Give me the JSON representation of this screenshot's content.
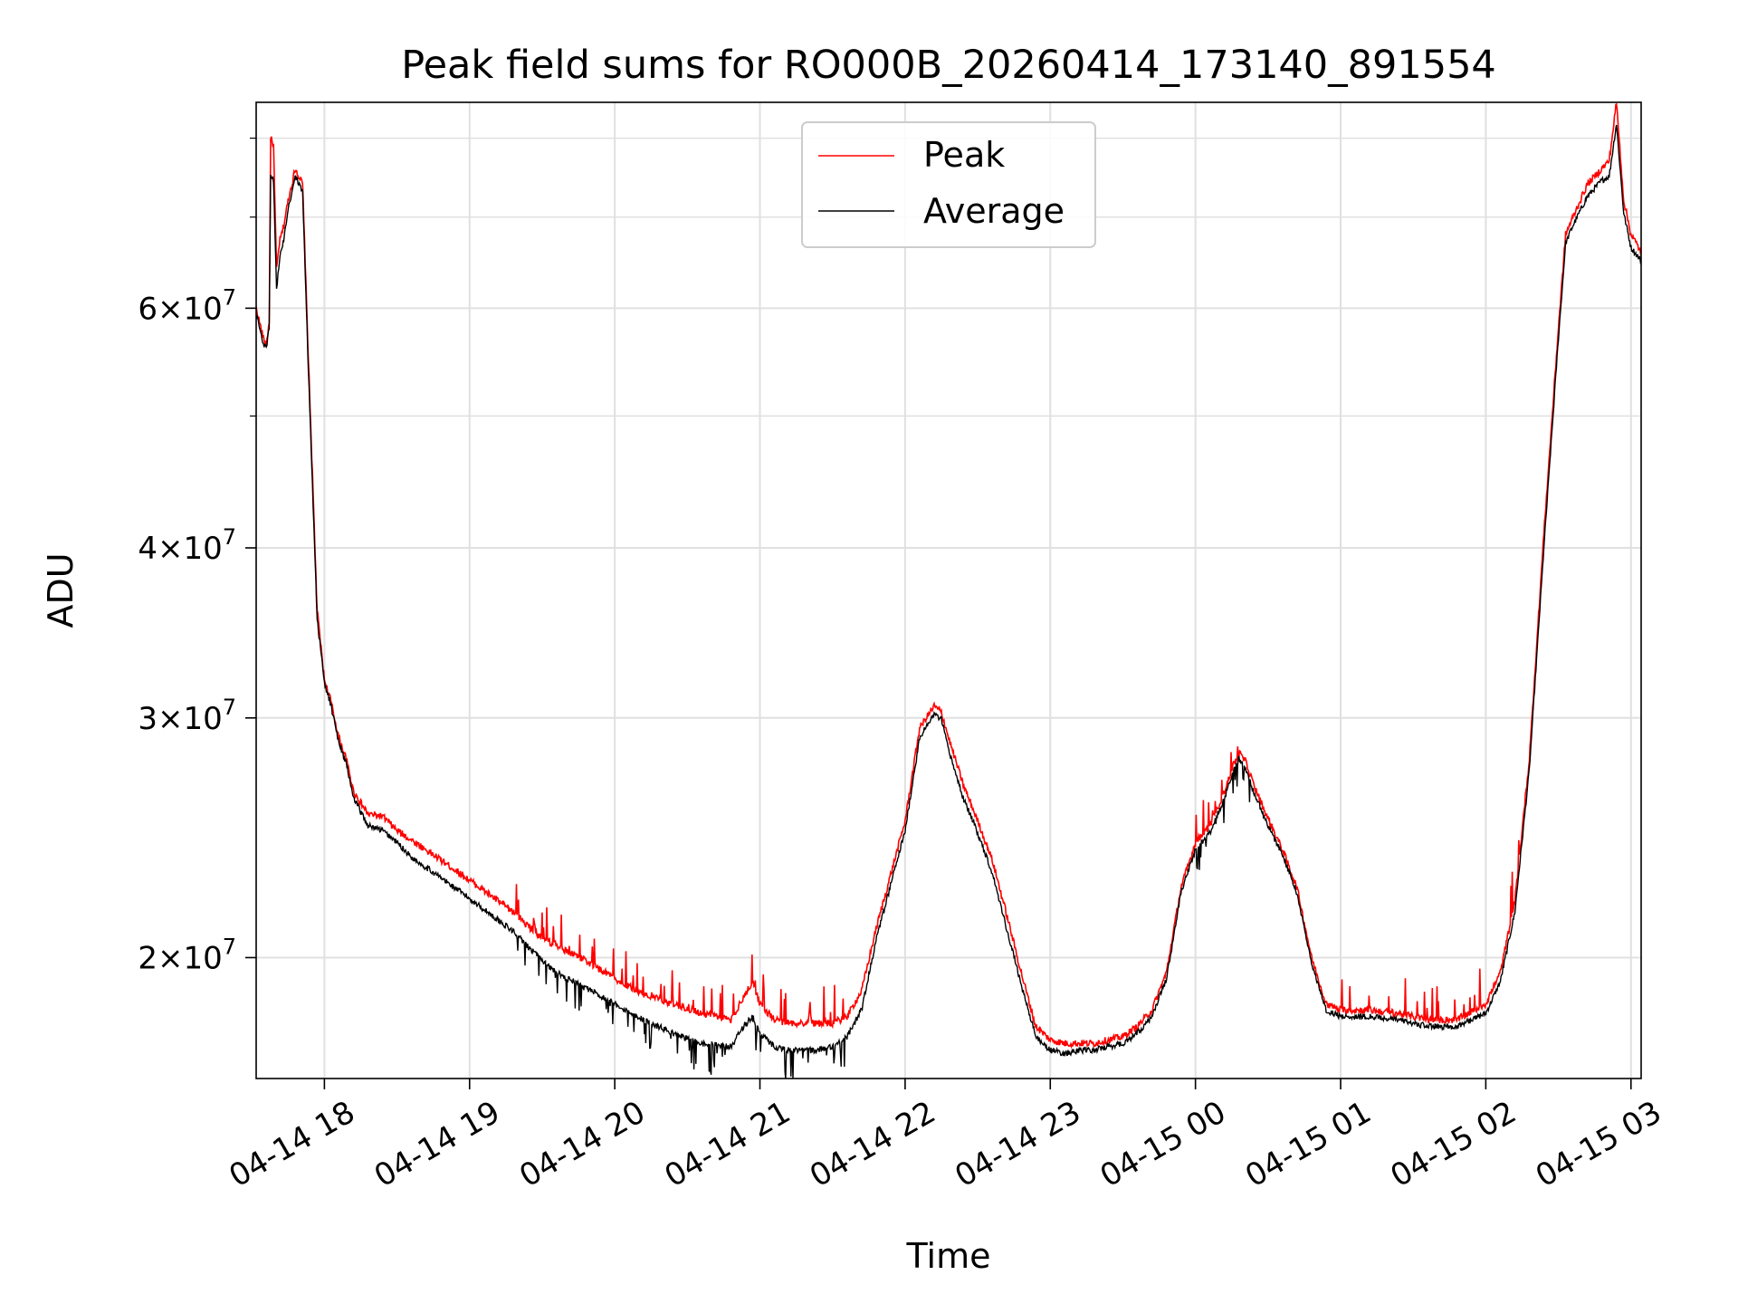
{
  "chart_data": {
    "type": "line",
    "title": "Peak field sums for RO000B_20260414_173140_891554",
    "xlabel": "Time",
    "ylabel": "ADU",
    "yscale": "log",
    "ylim": [
      16300000,
      85000000
    ],
    "xlim_hours": [
      17.53,
      27.07
    ],
    "grid": true,
    "legend_position": "upper center",
    "colors": {
      "peak": "#ff0000",
      "average": "#000000",
      "grid": "#e0e0e0"
    },
    "x_ticks": [
      {
        "hour": 18,
        "label": "04-14 18"
      },
      {
        "hour": 19,
        "label": "04-14 19"
      },
      {
        "hour": 20,
        "label": "04-14 20"
      },
      {
        "hour": 21,
        "label": "04-14 21"
      },
      {
        "hour": 22,
        "label": "04-14 22"
      },
      {
        "hour": 23,
        "label": "04-14 23"
      },
      {
        "hour": 24,
        "label": "04-15 00"
      },
      {
        "hour": 25,
        "label": "04-15 01"
      },
      {
        "hour": 26,
        "label": "04-15 02"
      },
      {
        "hour": 27,
        "label": "04-15 03"
      }
    ],
    "y_major_ticks": [
      {
        "value": 20000000,
        "mantissa": "2",
        "exponent": "7"
      },
      {
        "value": 30000000,
        "mantissa": "3",
        "exponent": "7"
      },
      {
        "value": 40000000,
        "mantissa": "4",
        "exponent": "7"
      },
      {
        "value": 60000000,
        "mantissa": "6",
        "exponent": "7"
      }
    ],
    "y_minor_ticks": [
      50000000,
      70000000,
      80000000
    ],
    "series": [
      {
        "name": "Peak",
        "x_hours": [
          17.53,
          17.58,
          17.6,
          17.62,
          17.63,
          17.65,
          17.67,
          17.69,
          17.72,
          17.75,
          17.8,
          17.85,
          17.89,
          17.95,
          18.0,
          18.04,
          18.1,
          18.15,
          18.2,
          18.3,
          18.4,
          18.5,
          18.6,
          18.7,
          18.8,
          19.0,
          19.2,
          19.3,
          19.4,
          19.5,
          19.6,
          19.8,
          20.0,
          20.2,
          20.4,
          20.6,
          20.8,
          20.9,
          20.95,
          21.0,
          21.1,
          21.2,
          21.3,
          21.4,
          21.5,
          21.6,
          21.7,
          21.8,
          21.9,
          22.0,
          22.1,
          22.2,
          22.25,
          22.3,
          22.4,
          22.5,
          22.6,
          22.7,
          22.8,
          22.9,
          23.0,
          23.1,
          23.2,
          23.3,
          23.4,
          23.5,
          23.6,
          23.7,
          23.8,
          23.9,
          24.0,
          24.1,
          24.2,
          24.25,
          24.3,
          24.35,
          24.4,
          24.5,
          24.6,
          24.7,
          24.8,
          24.9,
          25.0,
          25.2,
          25.4,
          25.6,
          25.8,
          26.0,
          26.1,
          26.2,
          26.3,
          26.4,
          26.5,
          26.55,
          26.6,
          26.7,
          26.8,
          26.85,
          26.9,
          26.95,
          27.0,
          27.07
        ],
        "values": [
          60000000,
          57000000,
          56500000,
          58500000,
          80000000,
          79000000,
          64000000,
          67000000,
          69000000,
          72000000,
          76000000,
          74000000,
          55000000,
          36000000,
          32000000,
          31000000,
          29000000,
          28000000,
          26500000,
          25500000,
          25400000,
          24800000,
          24400000,
          24000000,
          23600000,
          22800000,
          22000000,
          21600000,
          21100000,
          20700000,
          20400000,
          19900000,
          19300000,
          18800000,
          18500000,
          18200000,
          18000000,
          18800000,
          19200000,
          18500000,
          18000000,
          17900000,
          17900000,
          17900000,
          17900000,
          18100000,
          18900000,
          21000000,
          23000000,
          25200000,
          29500000,
          30600000,
          30300000,
          29000000,
          26800000,
          25200000,
          23600000,
          21500000,
          19500000,
          17800000,
          17400000,
          17300000,
          17300000,
          17300000,
          17400000,
          17500000,
          17800000,
          18300000,
          19500000,
          22500000,
          24300000,
          25000000,
          26500000,
          27500000,
          28300000,
          27800000,
          26800000,
          25300000,
          24000000,
          22500000,
          20000000,
          18500000,
          18300000,
          18300000,
          18200000,
          18000000,
          18000000,
          18500000,
          19500000,
          22000000,
          28000000,
          41000000,
          58000000,
          68000000,
          70000000,
          74000000,
          76000000,
          77000000,
          85000000,
          72000000,
          68000000,
          66000000
        ]
      },
      {
        "name": "Average",
        "x_hours": [
          17.53,
          17.58,
          17.6,
          17.62,
          17.63,
          17.65,
          17.67,
          17.69,
          17.72,
          17.75,
          17.8,
          17.85,
          17.89,
          17.95,
          18.0,
          18.04,
          18.1,
          18.15,
          18.2,
          18.3,
          18.4,
          18.5,
          18.6,
          18.7,
          18.8,
          19.0,
          19.2,
          19.3,
          19.4,
          19.5,
          19.6,
          19.8,
          20.0,
          20.2,
          20.4,
          20.6,
          20.8,
          20.9,
          20.95,
          21.0,
          21.1,
          21.2,
          21.3,
          21.4,
          21.5,
          21.6,
          21.7,
          21.8,
          21.9,
          22.0,
          22.1,
          22.2,
          22.25,
          22.3,
          22.4,
          22.5,
          22.6,
          22.7,
          22.8,
          22.9,
          23.0,
          23.1,
          23.2,
          23.3,
          23.4,
          23.5,
          23.6,
          23.7,
          23.8,
          23.9,
          24.0,
          24.1,
          24.2,
          24.25,
          24.3,
          24.35,
          24.4,
          24.5,
          24.6,
          24.7,
          24.8,
          24.9,
          25.0,
          25.2,
          25.4,
          25.6,
          25.8,
          26.0,
          26.1,
          26.2,
          26.3,
          26.4,
          26.5,
          26.55,
          26.6,
          26.7,
          26.8,
          26.85,
          26.9,
          26.95,
          27.0,
          27.07
        ],
        "values": [
          59500000,
          56500000,
          56000000,
          58000000,
          75000000,
          74500000,
          62000000,
          65000000,
          67500000,
          71000000,
          75000000,
          73000000,
          54000000,
          35500000,
          31800000,
          30800000,
          28800000,
          27800000,
          26200000,
          25000000,
          24800000,
          24300000,
          23700000,
          23300000,
          22900000,
          22100000,
          21300000,
          20900000,
          20400000,
          19900000,
          19500000,
          19000000,
          18500000,
          18000000,
          17600000,
          17300000,
          17200000,
          17900000,
          18100000,
          17600000,
          17200000,
          17100000,
          17100000,
          17100000,
          17200000,
          17500000,
          18300000,
          20600000,
          22600000,
          24800000,
          29000000,
          30200000,
          29900000,
          28400000,
          26200000,
          24700000,
          23100000,
          21000000,
          19100000,
          17500000,
          17100000,
          17000000,
          17100000,
          17100000,
          17200000,
          17300000,
          17600000,
          18100000,
          19300000,
          22300000,
          24000000,
          24700000,
          26200000,
          27200000,
          28000000,
          27500000,
          26500000,
          25000000,
          23800000,
          22300000,
          19800000,
          18300000,
          18100000,
          18100000,
          18000000,
          17800000,
          17800000,
          18200000,
          19200000,
          21600000,
          27500000,
          40000000,
          57000000,
          67000000,
          69000000,
          72500000,
          74500000,
          75000000,
          82000000,
          70500000,
          66500000,
          65000000
        ]
      }
    ]
  }
}
